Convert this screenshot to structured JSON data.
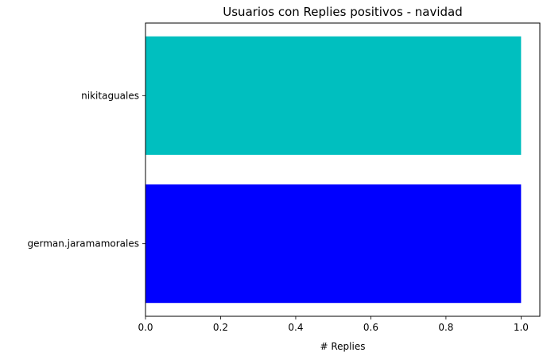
{
  "chart_data": {
    "type": "bar",
    "orientation": "horizontal",
    "title": "Usuarios con Replies positivos - navidad",
    "xlabel": "# Replies",
    "ylabel": "",
    "categories": [
      "german.jaramamorales",
      "nikitaguales"
    ],
    "values": [
      1,
      1
    ],
    "colors": [
      "#0000ff",
      "#00bfbf"
    ],
    "xlim": [
      0,
      1.05
    ],
    "xticks": [
      0.0,
      0.2,
      0.4,
      0.6,
      0.8,
      1.0
    ],
    "xtick_labels": [
      "0.0",
      "0.2",
      "0.4",
      "0.6",
      "0.8",
      "1.0"
    ],
    "grid": false
  }
}
